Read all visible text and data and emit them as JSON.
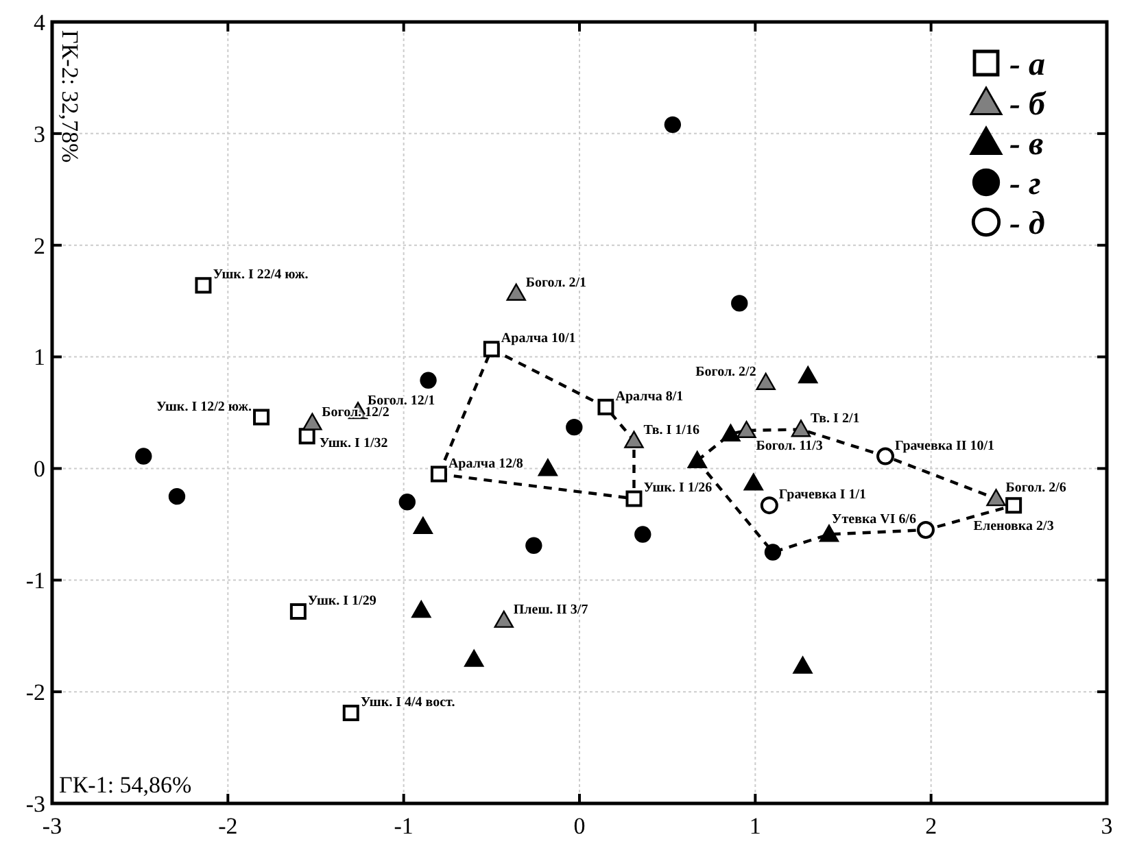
{
  "chart_data": {
    "type": "scatter",
    "xlabel": "ГК-1: 54,86%",
    "ylabel": "ГК-2: 32,78%",
    "xlim": [
      -3,
      3
    ],
    "xticks": [
      -3,
      -2,
      -1,
      0,
      1,
      2,
      3
    ],
    "ylim": [
      -3,
      4
    ],
    "yticks": [
      -3,
      -2,
      -1,
      0,
      1,
      2,
      3,
      4
    ],
    "grid": true,
    "legend": "top right",
    "series": [
      {
        "type": "line",
        "color": "#000000",
        "line_style": "dashed",
        "marker": "none",
        "x": [
          -0.8,
          -0.5,
          0.15,
          0.31,
          0.31
        ],
        "values": [
          -0.05,
          1.07,
          0.55,
          0.25,
          -0.27
        ]
      },
      {
        "type": "line",
        "color": "#000000",
        "line_style": "dashed",
        "marker": "none",
        "x": [
          -0.8,
          0.31
        ],
        "values": [
          -0.05,
          -0.27
        ]
      },
      {
        "type": "line",
        "color": "#000000",
        "line_style": "dashed",
        "marker": "none",
        "x": [
          0.67,
          0.86,
          0.95,
          1.26,
          1.74,
          2.37,
          2.47
        ],
        "values": [
          0.07,
          0.31,
          0.34,
          0.35,
          0.11,
          -0.27,
          -0.33
        ]
      },
      {
        "type": "line",
        "color": "#000000",
        "line_style": "dashed",
        "marker": "none",
        "x": [
          0.67,
          1.1,
          1.42,
          1.97,
          2.47
        ],
        "values": [
          0.07,
          -0.75,
          -0.59,
          -0.55,
          -0.33
        ]
      },
      {
        "name": "- а",
        "color": "#ffffff",
        "marker": "square",
        "x": [
          -2.14,
          -1.81,
          -1.55,
          -0.5,
          -0.8,
          0.15,
          0.31,
          2.47,
          -1.6,
          -1.3
        ],
        "values": [
          1.64,
          0.46,
          0.29,
          1.07,
          -0.05,
          0.55,
          -0.27,
          -0.33,
          -1.28,
          -2.19
        ]
      },
      {
        "name": "- б",
        "color": "#808080",
        "marker": "triangle",
        "x": [
          -0.36,
          -1.52,
          -1.26,
          0.31,
          1.06,
          0.95,
          1.26,
          2.37,
          -0.43
        ],
        "values": [
          1.57,
          0.41,
          0.51,
          0.25,
          0.77,
          0.34,
          0.35,
          -0.27,
          -1.36
        ]
      },
      {
        "name": "- в",
        "color": "#000000",
        "marker": "triangle",
        "x": [
          1.3,
          0.86,
          0.67,
          0.99,
          1.42,
          -0.18,
          -0.89,
          -0.9,
          -0.6,
          1.27
        ],
        "values": [
          0.83,
          0.31,
          0.07,
          -0.13,
          -0.59,
          0.0,
          -0.52,
          -1.27,
          -1.71,
          -1.77
        ]
      },
      {
        "name": "- г",
        "color": "#000000",
        "marker": "circle",
        "x": [
          0.53,
          0.91,
          -0.86,
          -0.03,
          -2.48,
          -2.29,
          -0.98,
          -0.26,
          0.36,
          1.1
        ],
        "values": [
          3.08,
          1.48,
          0.79,
          0.37,
          0.11,
          -0.25,
          -0.3,
          -0.69,
          -0.59,
          -0.75
        ]
      },
      {
        "name": "- д",
        "color": "#ffffff",
        "marker": "circle",
        "x": [
          1.74,
          1.08,
          1.97
        ],
        "values": [
          0.11,
          -0.33,
          -0.55
        ]
      }
    ],
    "annotations": [
      {
        "text": "Ушк. I 22/4 юж.",
        "x": -2.14,
        "y": 1.64
      },
      {
        "text": "Ушк. I 12/2 юж.",
        "x": -1.81,
        "y": 0.46
      },
      {
        "text": "Ушк. I 1/32",
        "x": -1.55,
        "y": 0.29
      },
      {
        "text": "Богол. 12/2",
        "x": -1.52,
        "y": 0.41
      },
      {
        "text": "Богол. 12/1",
        "x": -1.26,
        "y": 0.51
      },
      {
        "text": "Богол. 2/1",
        "x": -0.36,
        "y": 1.57
      },
      {
        "text": "Аралча 10/1",
        "x": -0.5,
        "y": 1.07
      },
      {
        "text": "Аралча 12/8",
        "x": -0.8,
        "y": -0.05
      },
      {
        "text": "Аралча 8/1",
        "x": 0.15,
        "y": 0.55
      },
      {
        "text": "Тв. I 1/16",
        "x": 0.31,
        "y": 0.25
      },
      {
        "text": "Ушк. I 1/26",
        "x": 0.31,
        "y": -0.27
      },
      {
        "text": "Богол. 2/2",
        "x": 1.06,
        "y": 0.77
      },
      {
        "text": "Богол. 11/3",
        "x": 0.95,
        "y": 0.34
      },
      {
        "text": "Тв. I 2/1",
        "x": 1.26,
        "y": 0.35
      },
      {
        "text": "Грачевка II 10/1",
        "x": 1.74,
        "y": 0.11
      },
      {
        "text": "Грачевка I 1/1",
        "x": 1.08,
        "y": -0.33
      },
      {
        "text": "Богол. 2/6",
        "x": 2.37,
        "y": -0.27
      },
      {
        "text": "Еленовка 2/3",
        "x": 2.47,
        "y": -0.33
      },
      {
        "text": "Утевка VI 6/6",
        "x": 1.97,
        "y": -0.55
      },
      {
        "text": "Ушк. I 1/29",
        "x": -1.6,
        "y": -1.28
      },
      {
        "text": "Плеш. II 3/7",
        "x": -0.43,
        "y": -1.36
      },
      {
        "text": "Ушк. I 4/4 вост.",
        "x": -1.3,
        "y": -2.19
      }
    ]
  }
}
